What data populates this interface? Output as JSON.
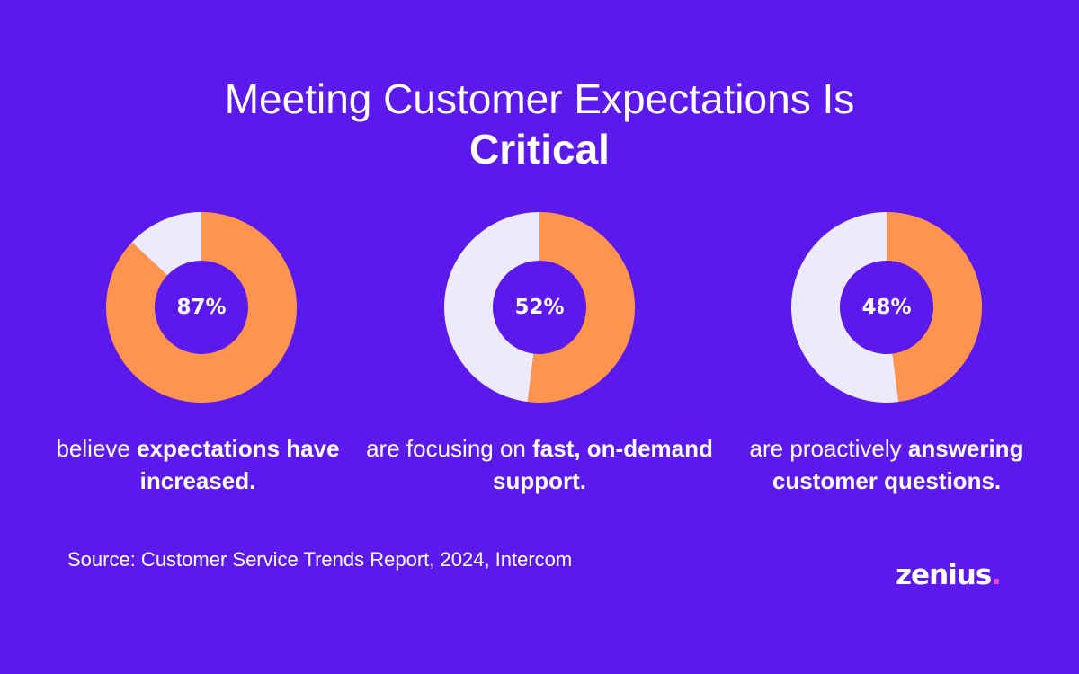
{
  "title": {
    "line1": "Meeting Customer Expectations Is",
    "line2": "Critical"
  },
  "colors": {
    "background": "#5b19ec",
    "filled": "#ff944e",
    "remainder": "#edeafc",
    "logo_dot": "#e94bc6"
  },
  "chart_data": [
    {
      "type": "pie",
      "label": "87%",
      "values": [
        87,
        13
      ],
      "caption_prefix": "believe ",
      "caption_bold": "expectations have increased."
    },
    {
      "type": "pie",
      "label": "52%",
      "values": [
        52,
        48
      ],
      "caption_prefix": "are focusing on ",
      "caption_bold": "fast, on-demand support."
    },
    {
      "type": "pie",
      "label": "48%",
      "values": [
        48,
        52
      ],
      "caption_prefix": "are proactively ",
      "caption_bold": "answering customer questions."
    }
  ],
  "source": "Source: Customer Service Trends Report, 2024, Intercom",
  "logo": {
    "text": "zenius",
    "dot": "."
  }
}
